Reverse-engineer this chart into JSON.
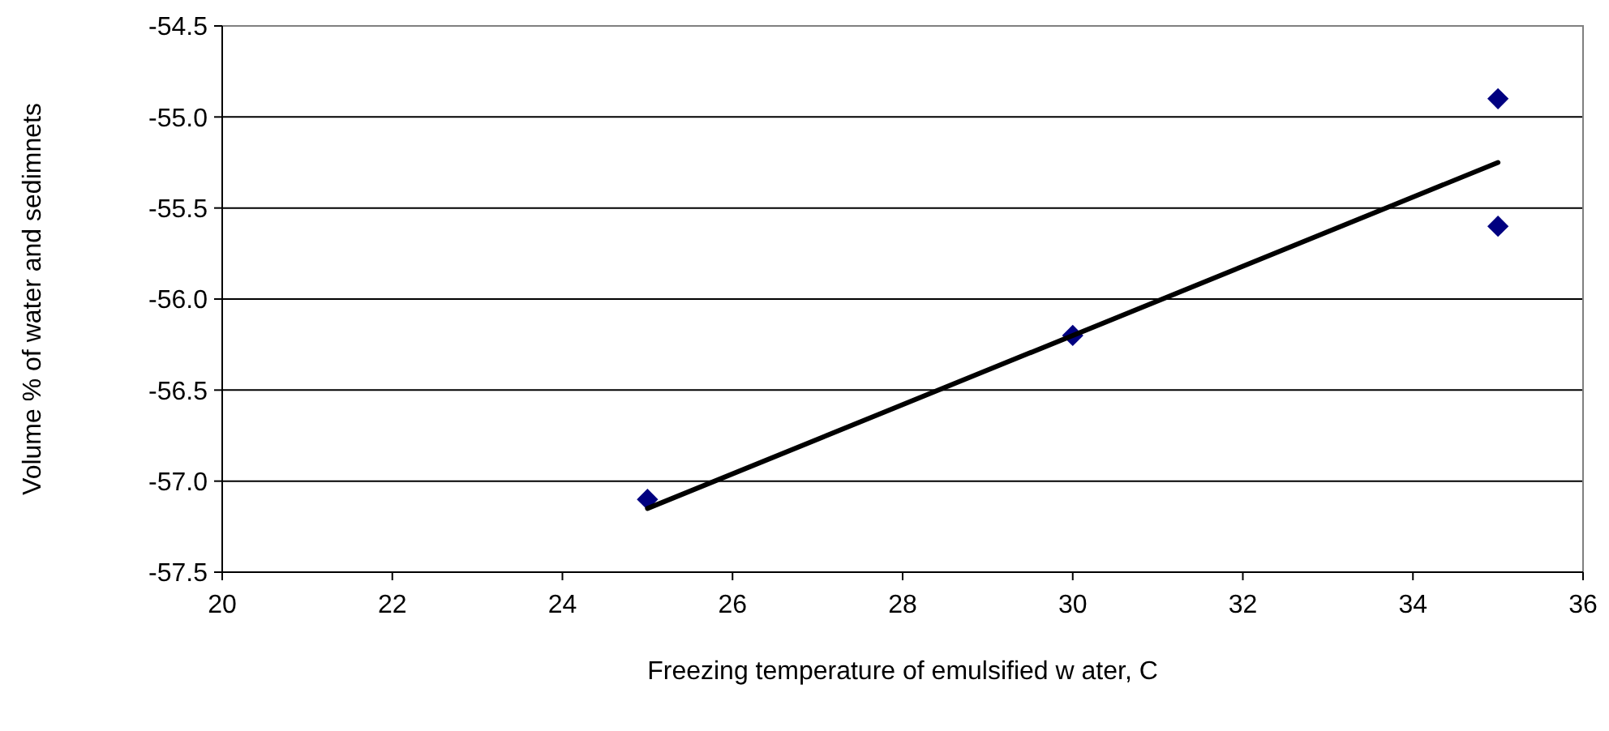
{
  "chart_data": {
    "type": "scatter",
    "xlabel": "Freezing temperature of emulsified w ater, C",
    "ylabel": "Volume % of water and sedimnets",
    "series": [
      {
        "type": "scatter",
        "color": "#000080",
        "marker": "diamond",
        "x": [
          25,
          30,
          35,
          35
        ],
        "values": [
          -57.1,
          -56.2,
          -54.9,
          -55.6
        ]
      },
      {
        "type": "line",
        "color": "#000000",
        "marker": "none",
        "line_style": "solid",
        "x": [
          25,
          35
        ],
        "values": [
          -57.15,
          -55.25
        ]
      }
    ],
    "xlim": [
      20,
      36
    ],
    "xticks": [
      20,
      22,
      24,
      26,
      28,
      30,
      32,
      34,
      36
    ],
    "ylim": [
      -57.5,
      -54.5
    ],
    "yticks": [
      {
        "value": -57.5,
        "label": "-57.5"
      },
      {
        "value": -57,
        "label": "-57.0"
      },
      {
        "value": -56.5,
        "label": "-56.5"
      },
      {
        "value": -56,
        "label": "-56.0"
      },
      {
        "value": -55.5,
        "label": "-55.5"
      },
      {
        "value": -55,
        "label": "-55.0"
      },
      {
        "value": -54.5,
        "label": "-54.5"
      }
    ],
    "grid": "y"
  }
}
